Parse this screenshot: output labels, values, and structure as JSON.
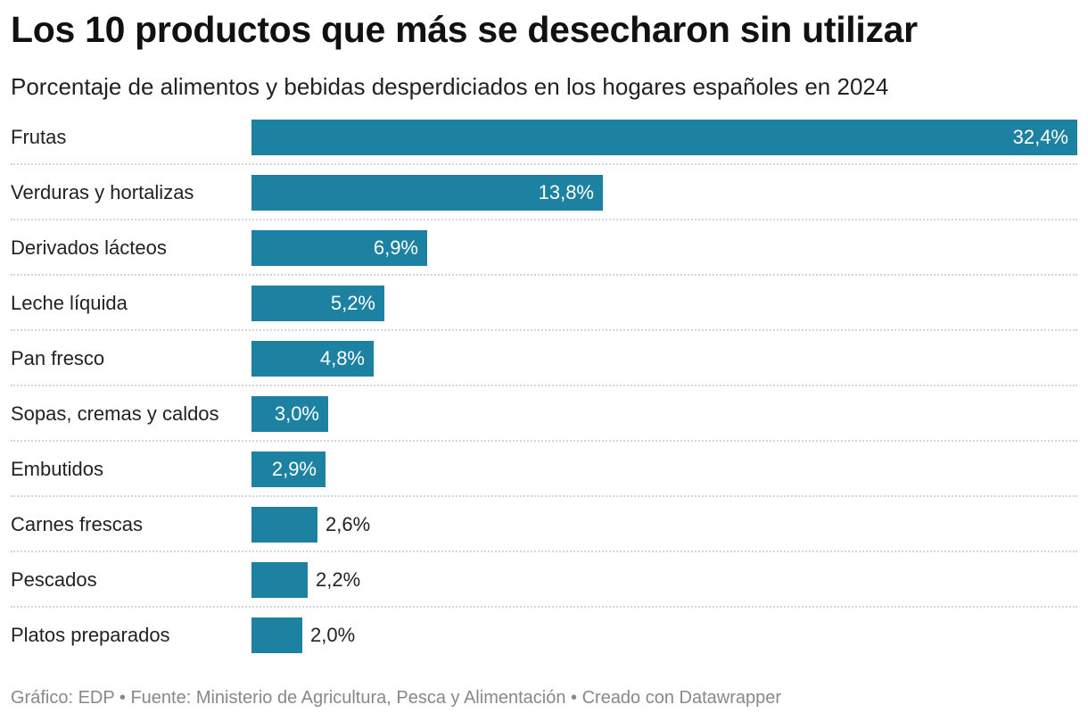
{
  "header": {
    "title": "Los 10 productos que más se desecharon sin utilizar",
    "subtitle": "Porcentaje de alimentos y bebidas desperdiciados en los hogares españoles en 2024"
  },
  "chart_data": {
    "type": "bar",
    "orientation": "horizontal",
    "title": "Los 10 productos que más se desecharon sin utilizar",
    "subtitle": "Porcentaje de alimentos y bebidas desperdiciados en los hogares españoles en 2024",
    "categories": [
      "Frutas",
      "Verduras y hortalizas",
      "Derivados lácteos",
      "Leche líquida",
      "Pan fresco",
      "Sopas, cremas y caldos",
      "Embutidos",
      "Carnes frescas",
      "Pescados",
      "Platos preparados"
    ],
    "values": [
      32.4,
      13.8,
      6.9,
      5.2,
      4.8,
      3.0,
      2.9,
      2.6,
      2.2,
      2.0
    ],
    "labels": [
      "32,4%",
      "13,8%",
      "6,9%",
      "5,2%",
      "4,8%",
      "3,0%",
      "2,9%",
      "2,6%",
      "2,2%",
      "2,0%"
    ],
    "unit": "%",
    "xlim": [
      0,
      32.4
    ],
    "bar_color": "#1d81a2",
    "grid": false,
    "xlabel": "",
    "ylabel": ""
  },
  "footer": {
    "credit": "Gráfico: EDP • Fuente: Ministerio de Agricultura, Pesca y Alimentación • Creado con Datawrapper"
  }
}
